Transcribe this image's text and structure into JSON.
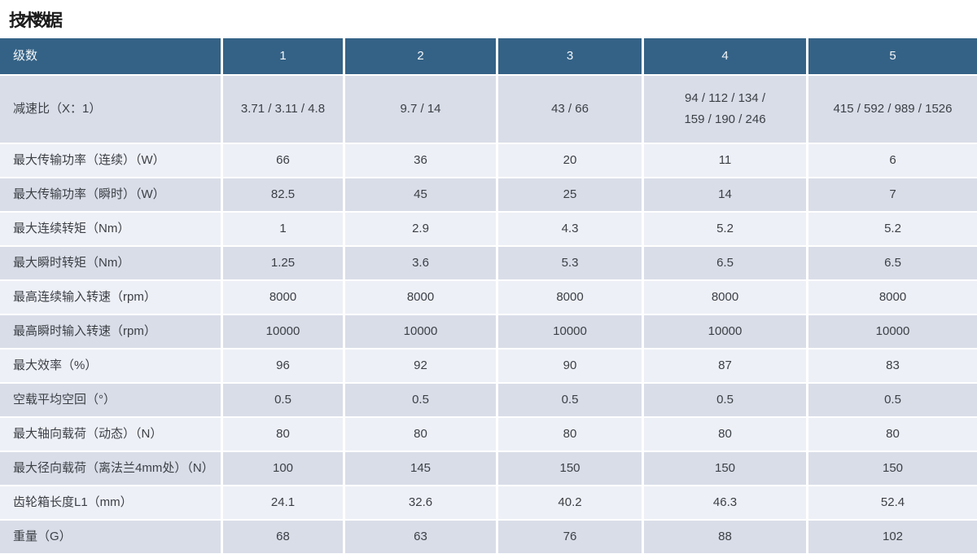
{
  "page": {
    "title": "技术数据"
  },
  "colors": {
    "header_bg": "#346286",
    "header_text": "#f3f6f9",
    "row_dark_bg": "#d9dde8",
    "row_light_bg": "#eef0f7",
    "body_text": "#3c4045",
    "separator": "#ffffff",
    "title_text": "#1d1d1d"
  },
  "table": {
    "header": {
      "label": "级数",
      "columns": [
        "1",
        "2",
        "3",
        "4",
        "5"
      ]
    },
    "rows": [
      {
        "label": "减速比（X：1）",
        "values": [
          "3.71 / 3.11 / 4.8",
          "9.7 / 14",
          "43 / 66",
          "94 / 112 / 134 /\n159 / 190 / 246",
          "415 / 592 / 989 / 1526"
        ]
      },
      {
        "label": "最大传输功率（连续）（W）",
        "values": [
          "66",
          "36",
          "20",
          "11",
          "6"
        ]
      },
      {
        "label": "最大传输功率（瞬时）（W）",
        "values": [
          "82.5",
          "45",
          "25",
          "14",
          "7"
        ]
      },
      {
        "label": "最大连续转矩（Nm）",
        "values": [
          "1",
          "2.9",
          "4.3",
          "5.2",
          "5.2"
        ]
      },
      {
        "label": "最大瞬时转矩（Nm）",
        "values": [
          "1.25",
          "3.6",
          "5.3",
          "6.5",
          "6.5"
        ]
      },
      {
        "label": "最高连续输入转速（rpm）",
        "values": [
          "8000",
          "8000",
          "8000",
          "8000",
          "8000"
        ]
      },
      {
        "label": "最高瞬时输入转速（rpm）",
        "values": [
          "10000",
          "10000",
          "10000",
          "10000",
          "10000"
        ]
      },
      {
        "label": "最大效率（%）",
        "values": [
          "96",
          "92",
          "90",
          "87",
          "83"
        ]
      },
      {
        "label": "空载平均空回（°）",
        "values": [
          "0.5",
          "0.5",
          "0.5",
          "0.5",
          "0.5"
        ]
      },
      {
        "label": "最大轴向载荷（动态）（N）",
        "values": [
          "80",
          "80",
          "80",
          "80",
          "80"
        ]
      },
      {
        "label": "最大径向载荷（离法兰4mm处）（N）",
        "values": [
          "100",
          "145",
          "150",
          "150",
          "150"
        ]
      },
      {
        "label": "齿轮箱长度L1（mm）",
        "values": [
          "24.1",
          "32.6",
          "40.2",
          "46.3",
          "52.4"
        ]
      },
      {
        "label": "重量（G）",
        "values": [
          "68",
          "63",
          "76",
          "88",
          "102"
        ]
      }
    ]
  }
}
